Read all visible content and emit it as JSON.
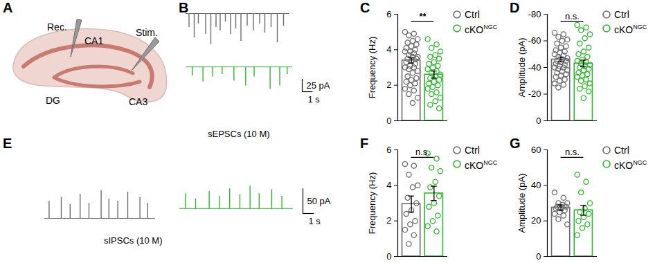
{
  "schematic": {
    "panel": "A",
    "labels": {
      "rec": "Rec.",
      "ca1": "CA1",
      "stim": "Stim.",
      "dg": "DG",
      "ca3": "CA3"
    }
  },
  "traces": [
    {
      "panel": "B",
      "caption": "sEPSCs (10 M)",
      "xlim": [
        0,
        10
      ],
      "ylim": [
        -50,
        10
      ],
      "scale_bar": {
        "y": {
          "value": 25,
          "label": "25 pA"
        },
        "x": {
          "value": 1,
          "label": "1 s"
        }
      },
      "series": [
        {
          "color": "#6b6b6b",
          "t": [
            0.3,
            0.8,
            1.2,
            1.9,
            2.4,
            2.9,
            3.3,
            3.8,
            4.3,
            4.8,
            5.3,
            5.9,
            6.5,
            7.1,
            7.6,
            8.2,
            8.8,
            9.4
          ],
          "amplitude": [
            -20,
            -35,
            -15,
            -30,
            -45,
            -20,
            -25,
            -12,
            -30,
            -22,
            -40,
            -18,
            -25,
            -15,
            -28,
            -20,
            -42,
            -18
          ]
        },
        {
          "color": "#2db82d",
          "t": [
            0.6,
            1.6,
            2.5,
            3.4,
            4.5,
            5.6,
            6.4,
            7.9,
            8.8,
            9.5
          ],
          "amplitude": [
            -18,
            -30,
            -20,
            -15,
            -28,
            -38,
            -20,
            -45,
            -38,
            -15
          ]
        }
      ]
    },
    {
      "panel": "E",
      "caption": "sIPSCs (10 M)",
      "xlim": [
        0,
        10
      ],
      "ylim": [
        -10,
        50
      ],
      "scale_bar": {
        "y": {
          "value": 50,
          "label": "50 pA"
        },
        "x": {
          "value": 1,
          "label": "1 s"
        }
      },
      "series": [
        {
          "color": "#6b6b6b",
          "t": [
            0.4,
            1.5,
            2.3,
            3.2,
            4.0,
            5.1,
            5.8,
            6.6,
            7.5,
            8.6,
            9.3
          ],
          "amplitude": [
            25,
            30,
            20,
            35,
            22,
            40,
            28,
            25,
            38,
            30,
            22
          ]
        },
        {
          "color": "#2db82d",
          "t": [
            0.5,
            1.4,
            2.6,
            3.5,
            4.4,
            5.3,
            6.2,
            7.0,
            8.1,
            9.0
          ],
          "amplitude": [
            30,
            20,
            35,
            25,
            40,
            28,
            45,
            30,
            38,
            25
          ]
        }
      ]
    }
  ],
  "chart_data": [
    {
      "type": "bar",
      "panel": "C",
      "ylabel": "Frequency (Hz)",
      "ylim": [
        0,
        6
      ],
      "yticks": [
        0,
        2,
        4,
        6
      ],
      "tick_labels": "y",
      "legend": "right",
      "significance": "**",
      "series": [
        {
          "name": "Ctrl",
          "color": "#6b6b6b",
          "mean": 3.4,
          "sem": 0.15,
          "points": [
            5.0,
            4.9,
            4.8,
            4.6,
            4.5,
            4.4,
            4.3,
            4.2,
            4.1,
            4.0,
            3.9,
            3.9,
            3.8,
            3.7,
            3.6,
            3.6,
            3.5,
            3.5,
            3.4,
            3.3,
            3.2,
            3.1,
            3.0,
            3.0,
            2.9,
            2.8,
            2.7,
            2.5,
            2.4,
            2.3,
            2.2,
            2.1,
            2.0,
            1.8,
            1.7,
            1.5,
            1.3,
            1.0
          ]
        },
        {
          "name": "cKO",
          "name_superscript": "NGC",
          "color": "#2db82d",
          "mean": 2.6,
          "sem": 0.2,
          "points": [
            4.6,
            4.3,
            4.1,
            3.9,
            3.7,
            3.6,
            3.5,
            3.3,
            3.2,
            3.1,
            3.0,
            2.9,
            2.8,
            2.7,
            2.6,
            2.5,
            2.4,
            2.3,
            2.2,
            2.1,
            2.0,
            1.9,
            1.8,
            1.6,
            1.5,
            1.3,
            1.1,
            0.9,
            0.7
          ]
        }
      ]
    },
    {
      "type": "bar",
      "panel": "D",
      "ylabel": "Amplitude (pA)",
      "ylim": [
        0,
        -80
      ],
      "yticks": [
        0,
        -20,
        -40,
        -60,
        -80
      ],
      "tick_labels": "y",
      "legend": "right",
      "significance": "n.s.",
      "series": [
        {
          "name": "Ctrl",
          "color": "#6b6b6b",
          "mean": -46,
          "sem": 1.8,
          "points": [
            -66,
            -65,
            -63,
            -61,
            -60,
            -58,
            -56,
            -55,
            -53,
            -52,
            -51,
            -50,
            -49,
            -48,
            -47,
            -46,
            -45,
            -45,
            -44,
            -43,
            -42,
            -41,
            -40,
            -40,
            -39,
            -38,
            -37,
            -36,
            -35,
            -34,
            -33,
            -31,
            -30,
            -28,
            -27,
            -25
          ]
        },
        {
          "name": "cKO",
          "name_superscript": "NGC",
          "color": "#2db82d",
          "mean": -43,
          "sem": 2.5,
          "points": [
            -72,
            -70,
            -68,
            -65,
            -62,
            -58,
            -55,
            -52,
            -50,
            -48,
            -46,
            -45,
            -44,
            -43,
            -42,
            -41,
            -40,
            -39,
            -38,
            -36,
            -35,
            -34,
            -33,
            -31,
            -30,
            -28,
            -26,
            -24,
            -22,
            -17
          ]
        }
      ]
    },
    {
      "type": "bar",
      "panel": "F",
      "ylabel": "Frequency (Hz)",
      "ylim": [
        0,
        6
      ],
      "yticks": [
        0,
        2,
        4,
        6
      ],
      "tick_labels": "y",
      "legend": "right",
      "significance": "n.s.",
      "series": [
        {
          "name": "Ctrl",
          "color": "#6b6b6b",
          "mean": 2.95,
          "sem": 0.45,
          "points": [
            5.2,
            5.1,
            4.6,
            4.0,
            3.9,
            3.3,
            3.0,
            2.6,
            2.4,
            2.0,
            1.8,
            1.5,
            1.2,
            0.7
          ]
        },
        {
          "name": "cKO",
          "name_superscript": "NGC",
          "color": "#2db82d",
          "mean": 3.55,
          "sem": 0.4,
          "points": [
            5.8,
            5.5,
            5.0,
            4.8,
            4.2,
            3.9,
            3.4,
            3.0,
            2.8,
            2.3,
            2.0,
            1.7,
            1.4
          ]
        }
      ]
    },
    {
      "type": "bar",
      "panel": "G",
      "ylabel": "Amplitude (pA)",
      "ylim": [
        0,
        60
      ],
      "yticks": [
        0,
        20,
        40,
        60
      ],
      "tick_labels": "y",
      "legend": "right",
      "significance": "n.s.",
      "series": [
        {
          "name": "Ctrl",
          "color": "#6b6b6b",
          "mean": 27.5,
          "sem": 1.5,
          "points": [
            36,
            33,
            30,
            30,
            29,
            28,
            28,
            27,
            27,
            26,
            25,
            24,
            23,
            21,
            18
          ]
        },
        {
          "name": "cKO",
          "name_superscript": "NGC",
          "color": "#2db82d",
          "mean": 26,
          "sem": 2.8,
          "points": [
            46,
            42,
            36,
            30,
            27,
            25,
            24,
            22,
            20,
            18,
            16,
            12
          ]
        }
      ]
    }
  ]
}
